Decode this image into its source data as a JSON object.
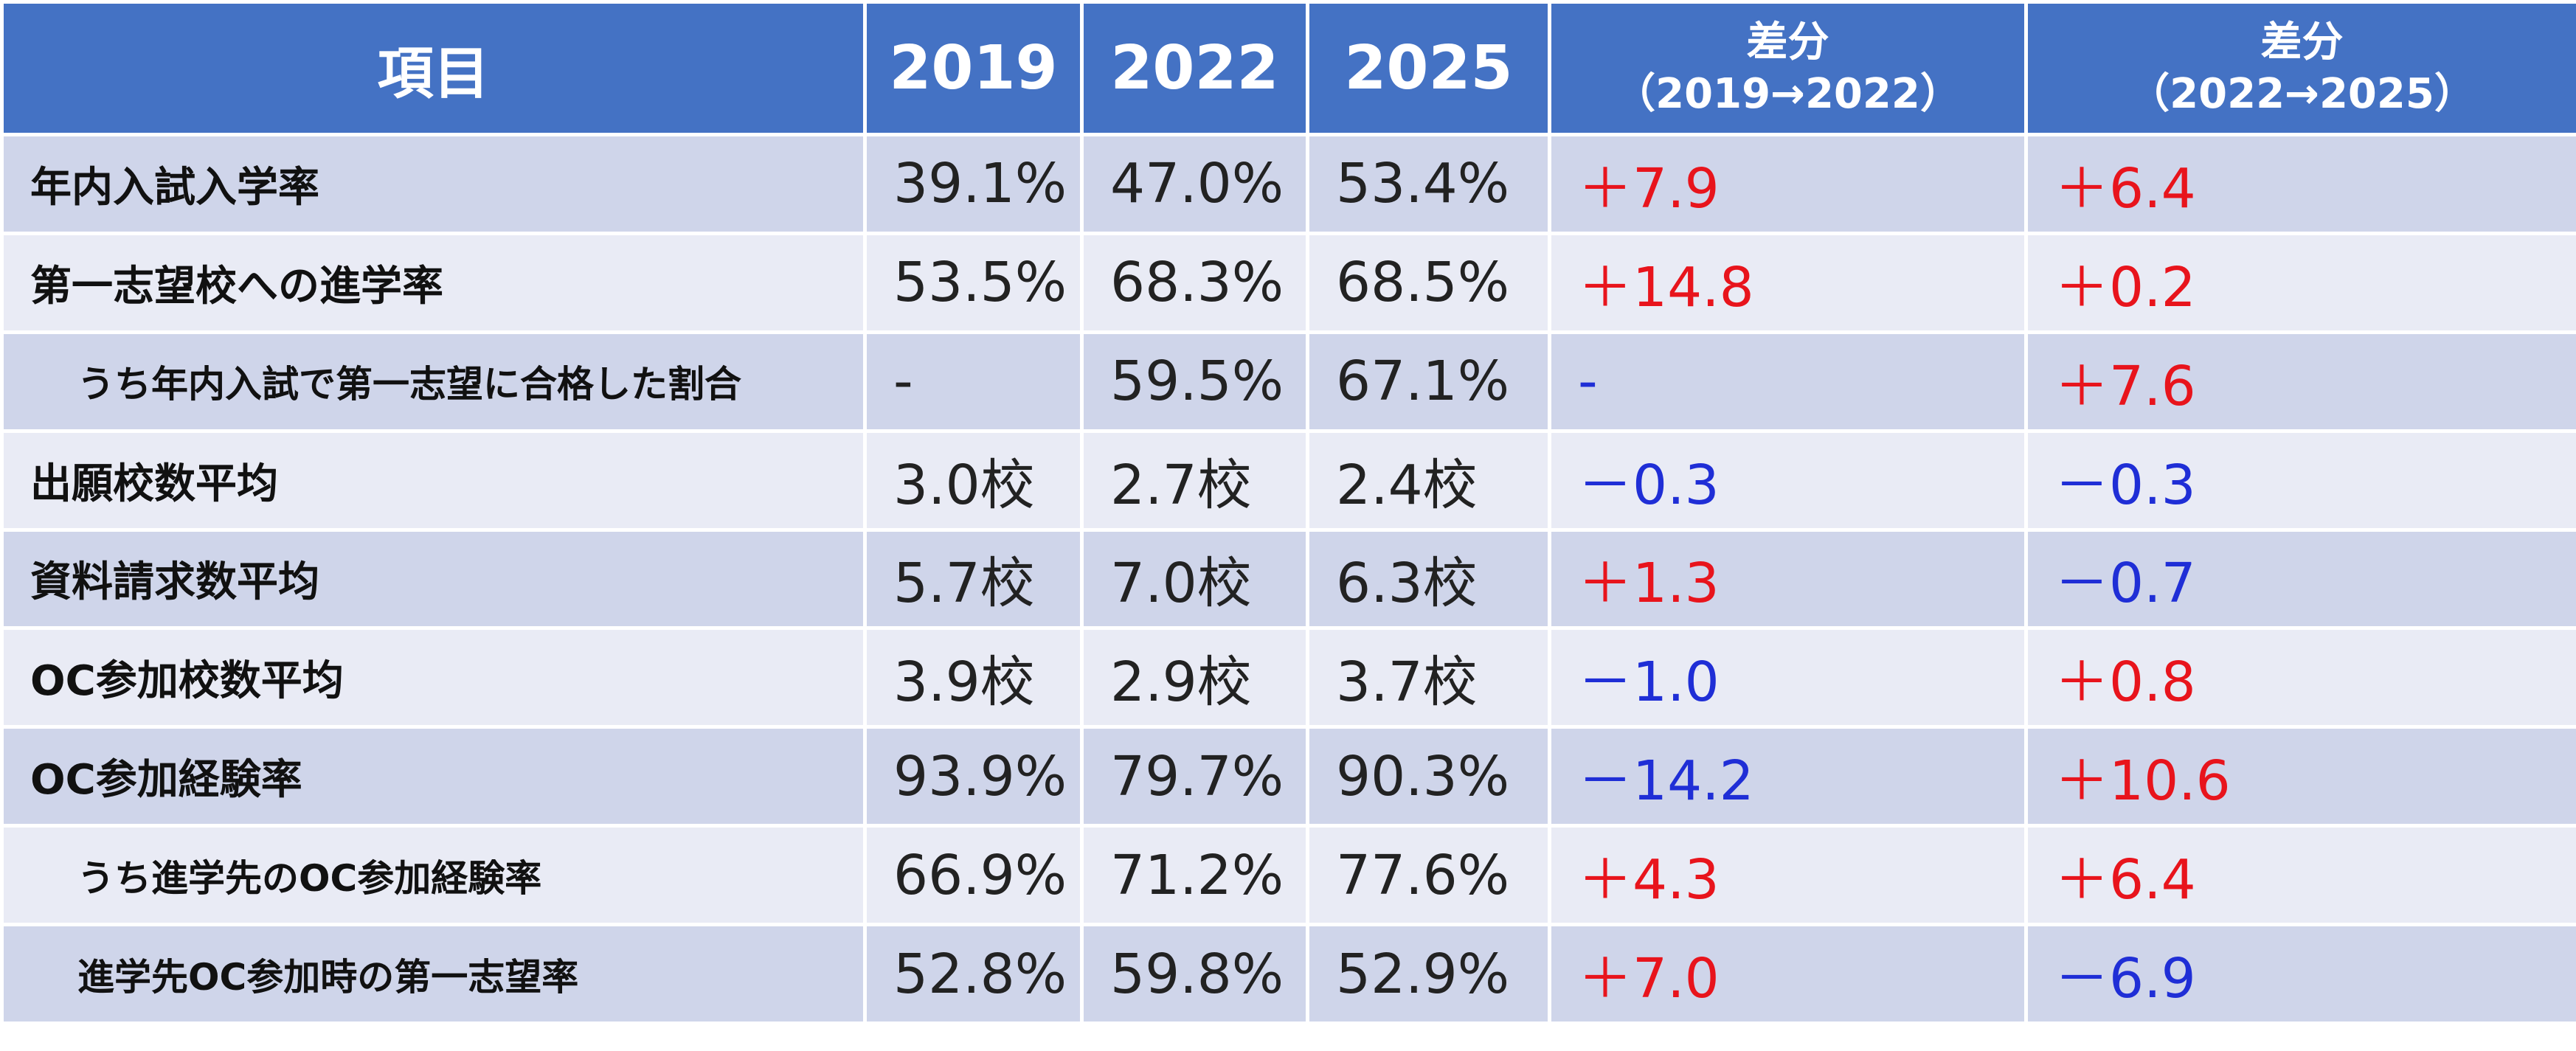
{
  "colors": {
    "header_bg": "#4472c4",
    "row_dark": "#cfd5ea",
    "row_light": "#e9ebf5",
    "positive": "#e8141c",
    "negative": "#1f2ed6"
  },
  "header": {
    "item": "項目",
    "y2019": "2019",
    "y2022": "2022",
    "y2025": "2025",
    "diff1_line1": "差分",
    "diff1_line2": "（2019→2022）",
    "diff2_line1": "差分",
    "diff2_line2": "（2022→2025）"
  },
  "rows": [
    {
      "item": "年内入試入学率",
      "v2019": "39.1%",
      "v2022": "47.0%",
      "v2025": "53.4%",
      "d1": "＋7.9",
      "d1_sign": "pos",
      "d2": "＋6.4",
      "d2_sign": "pos"
    },
    {
      "item": "第一志望校への進学率",
      "v2019": "53.5%",
      "v2022": "68.3%",
      "v2025": "68.5%",
      "d1": "＋14.8",
      "d1_sign": "pos",
      "d2": "＋0.2",
      "d2_sign": "pos"
    },
    {
      "item": "うち年内入試で第一志望に合格した割合",
      "v2019": "-",
      "v2022": "59.5%",
      "v2025": "67.1%",
      "d1": "-",
      "d1_sign": "neg",
      "d2": "＋7.6",
      "d2_sign": "pos"
    },
    {
      "item": "出願校数平均",
      "v2019": "3.0校",
      "v2022": "2.7校",
      "v2025": "2.4校",
      "d1": "－0.3",
      "d1_sign": "neg",
      "d2": "－0.3",
      "d2_sign": "neg"
    },
    {
      "item": "資料請求数平均",
      "v2019": "5.7校",
      "v2022": "7.0校",
      "v2025": "6.3校",
      "d1": "＋1.3",
      "d1_sign": "pos",
      "d2": "－0.7",
      "d2_sign": "neg"
    },
    {
      "item": "OC参加校数平均",
      "v2019": "3.9校",
      "v2022": "2.9校",
      "v2025": "3.7校",
      "d1": "－1.0",
      "d1_sign": "neg",
      "d2": "＋0.8",
      "d2_sign": "pos"
    },
    {
      "item": "OC参加経験率",
      "v2019": "93.9%",
      "v2022": "79.7%",
      "v2025": "90.3%",
      "d1": "－14.2",
      "d1_sign": "neg",
      "d2": "＋10.6",
      "d2_sign": "pos"
    },
    {
      "item": "うち進学先のOC参加経験率",
      "v2019": "66.9%",
      "v2022": "71.2%",
      "v2025": "77.6%",
      "d1": "＋4.3",
      "d1_sign": "pos",
      "d2": "＋6.4",
      "d2_sign": "pos"
    },
    {
      "item": "進学先OC参加時の第一志望率",
      "v2019": "52.8%",
      "v2022": "59.8%",
      "v2025": "52.9%",
      "d1": "＋7.0",
      "d1_sign": "pos",
      "d2": "－6.9",
      "d2_sign": "neg"
    }
  ]
}
